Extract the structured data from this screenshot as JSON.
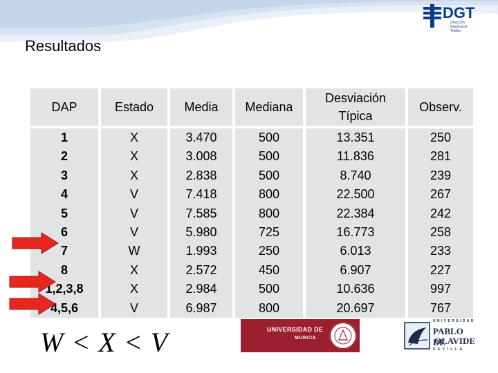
{
  "header": {
    "brand_text": "DGT",
    "brand_sub": "Dirección General de Tráfico"
  },
  "title": "Resultados",
  "table": {
    "headers": [
      "DAP",
      "Estado",
      "Media",
      "Mediana",
      "Desviación Típica",
      "Observ."
    ],
    "rows": [
      [
        "1",
        "X",
        "3.470",
        "500",
        "13.351",
        "250"
      ],
      [
        "2",
        "X",
        "3.008",
        "500",
        "11.836",
        "281"
      ],
      [
        "3",
        "X",
        "2.838",
        "500",
        "8.740",
        "239"
      ],
      [
        "4",
        "V",
        "7.418",
        "800",
        "22.500",
        "267"
      ],
      [
        "5",
        "V",
        "7.585",
        "800",
        "22.384",
        "242"
      ],
      [
        "6",
        "V",
        "5.980",
        "725",
        "16.773",
        "258"
      ],
      [
        "7",
        "W",
        "1.993",
        "250",
        "6.013",
        "233"
      ],
      [
        "8",
        "X",
        "2.572",
        "450",
        "6.907",
        "227"
      ],
      [
        "1,2,3,8",
        "X",
        "2.984",
        "500",
        "10.636",
        "997"
      ],
      [
        "4,5,6",
        "V",
        "6.987",
        "800",
        "20.697",
        "767"
      ]
    ]
  },
  "formula": "W < X < V",
  "logos": {
    "murcia_line1": "UNIVERSIDAD DE",
    "murcia_line2": "MURCIA",
    "olavide_top": "UNIVERSIDAD",
    "olavide_mid": "PABLO DE",
    "olavide_mid2": "OLAVIDE",
    "olavide_bot": "SEVILLA"
  },
  "colors": {
    "cell_bg": "#e2e3e5",
    "arrow": "#e8261f",
    "brand_blue": "#0a3e8c",
    "murcia_red": "#9c1f2e"
  }
}
